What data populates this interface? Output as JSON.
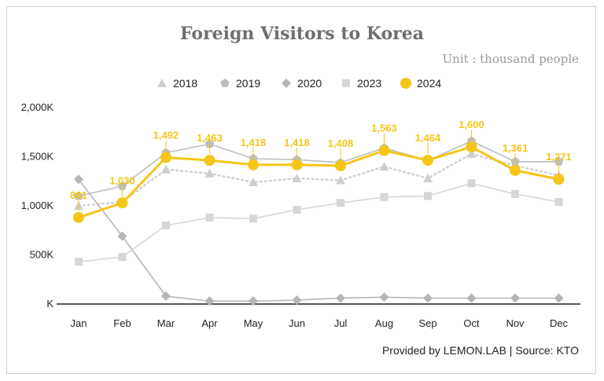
{
  "chart_data": {
    "type": "line",
    "title": "Foreign Visitors to Korea",
    "subtitle": "Unit : thousand people",
    "footer": "Provided by LEMON.LAB | Source: KTO",
    "categories": [
      "Jan",
      "Feb",
      "Mar",
      "Apr",
      "May",
      "Jun",
      "Jul",
      "Aug",
      "Sep",
      "Oct",
      "Nov",
      "Dec"
    ],
    "y_tick_labels": [
      "K",
      "500K",
      "1,000K",
      "1,500K",
      "2,000K"
    ],
    "y_ticks": [
      0,
      500,
      1000,
      1500,
      2000
    ],
    "ylim": [
      0,
      2000
    ],
    "legend_position": "top-center",
    "grid": false,
    "series": [
      {
        "name": "2018",
        "marker": "triangle",
        "color": "#cfcfcf",
        "dashed": true,
        "values": [
          1000,
          1040,
          1370,
          1330,
          1240,
          1280,
          1260,
          1400,
          1280,
          1530,
          1410,
          1310
        ]
      },
      {
        "name": "2019",
        "marker": "pentagon",
        "color": "#bdbdbd",
        "dashed": false,
        "values": [
          1100,
          1200,
          1540,
          1630,
          1480,
          1470,
          1440,
          1590,
          1460,
          1660,
          1450,
          1450
        ]
      },
      {
        "name": "2020",
        "marker": "diamond",
        "color": "#b5b5b5",
        "dashed": false,
        "values": [
          1270,
          690,
          80,
          30,
          30,
          40,
          60,
          70,
          60,
          60,
          60,
          60
        ]
      },
      {
        "name": "2023",
        "marker": "square",
        "color": "#d6d6d6",
        "dashed": false,
        "values": [
          430,
          480,
          800,
          880,
          870,
          960,
          1030,
          1090,
          1100,
          1230,
          1120,
          1040
        ]
      },
      {
        "name": "2024",
        "marker": "circle",
        "color": "#f5c518",
        "dashed": false,
        "values": [
          881,
          1030,
          1492,
          1463,
          1418,
          1418,
          1408,
          1563,
          1464,
          1600,
          1361,
          1271
        ],
        "data_labels": [
          "881",
          "1,030",
          "1,492",
          "1,463",
          "1,418",
          "1,418",
          "1,408",
          "1,563",
          "1,464",
          "1,600",
          "1,361",
          "1,271"
        ]
      }
    ]
  }
}
